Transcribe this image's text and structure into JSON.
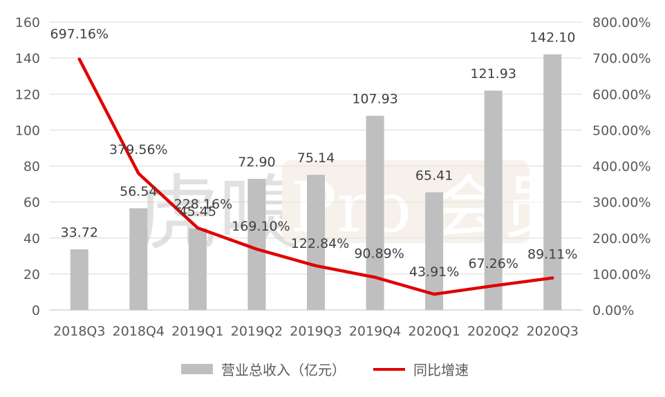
{
  "chart_data": {
    "type": "bar",
    "categories": [
      "2018Q3",
      "2018Q4",
      "2019Q1",
      "2019Q2",
      "2019Q3",
      "2019Q4",
      "2020Q1",
      "2020Q2",
      "2020Q3"
    ],
    "series": [
      {
        "name": "营业总收入（亿元）",
        "type": "bar",
        "axis": "left",
        "color": "#bfbfbf",
        "values": [
          33.72,
          56.54,
          45.45,
          72.9,
          75.14,
          107.93,
          65.41,
          121.93,
          142.1
        ],
        "labels": [
          "33.72",
          "56.54",
          "45.45",
          "72.90",
          "75.14",
          "107.93",
          "65.41",
          "121.93",
          "142.10"
        ]
      },
      {
        "name": "同比增速",
        "type": "line",
        "axis": "right",
        "color": "#e00000",
        "values": [
          697.16,
          379.56,
          228.16,
          169.1,
          122.84,
          90.89,
          43.91,
          67.26,
          89.11
        ],
        "labels": [
          "697.16%",
          "379.56%",
          "228.16%",
          "169.10%",
          "122.84%",
          "90.89%",
          "43.91%",
          "67.26%",
          "89.11%"
        ]
      }
    ],
    "y_left": {
      "range": [
        0,
        160
      ],
      "ticks": [
        "0",
        "20",
        "40",
        "60",
        "80",
        "100",
        "120",
        "140",
        "160"
      ]
    },
    "y_right": {
      "range": [
        0,
        800
      ],
      "ticks": [
        "0.00%",
        "100.00%",
        "200.00%",
        "300.00%",
        "400.00%",
        "500.00%",
        "600.00%",
        "700.00%",
        "800.00%"
      ]
    },
    "grid": true,
    "legend_position": "bottom",
    "watermark": "虎嗅 Pro 会员"
  }
}
